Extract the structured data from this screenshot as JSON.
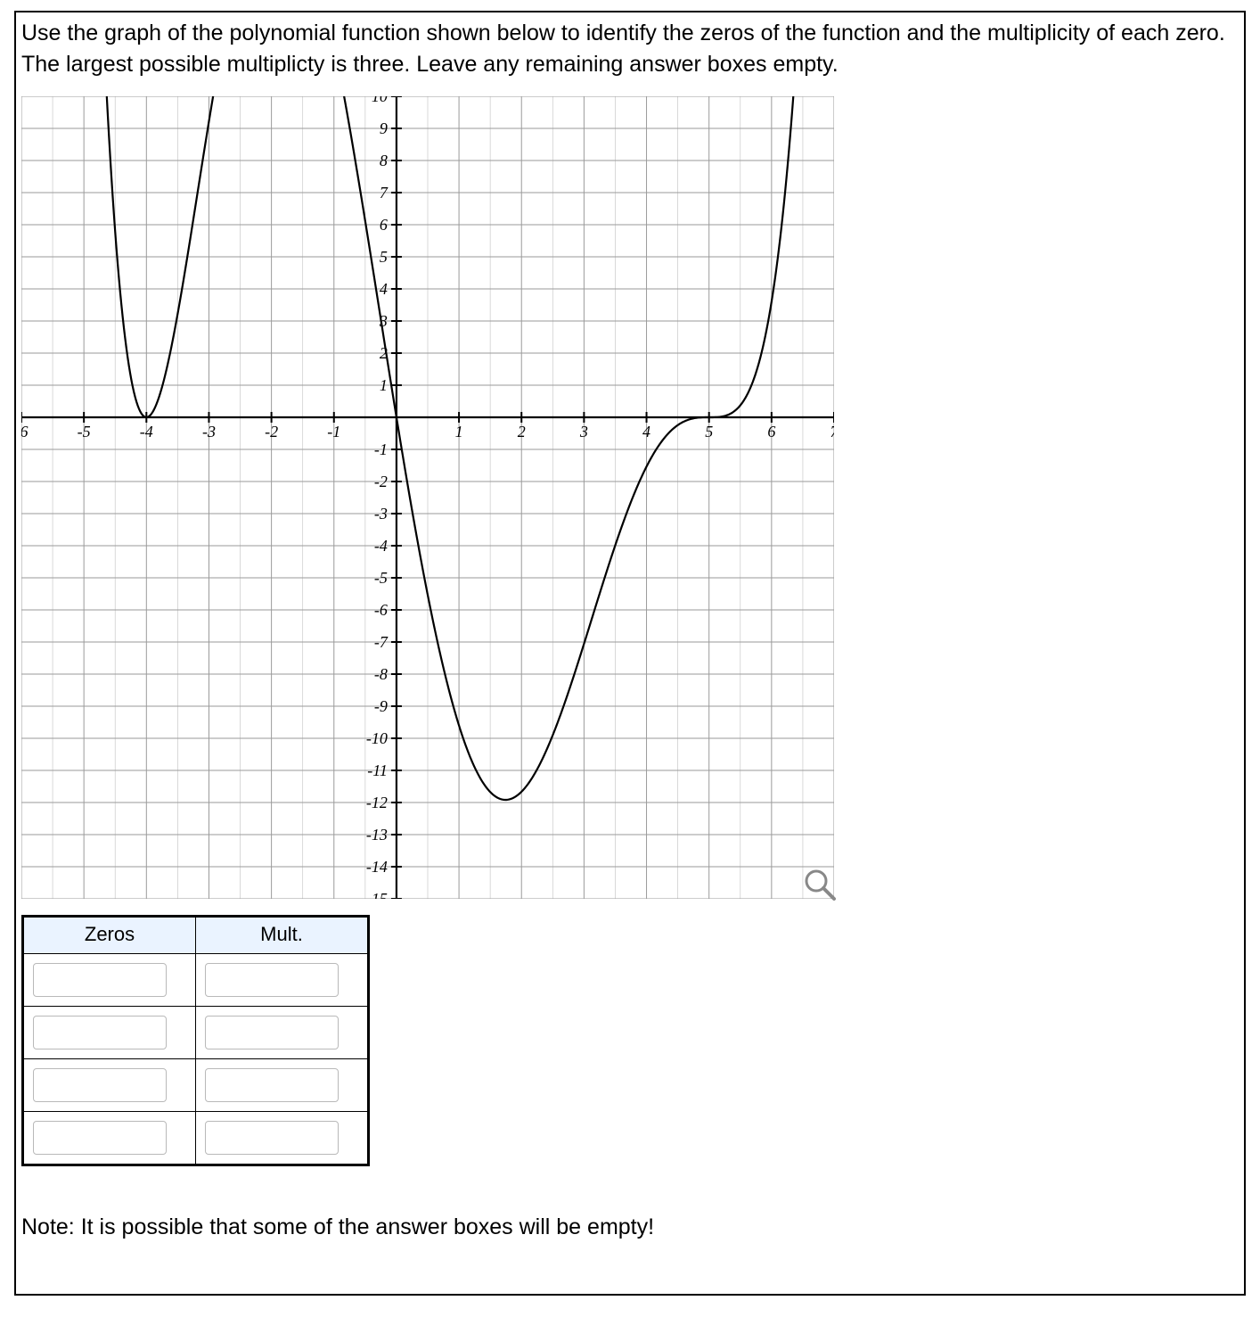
{
  "question_text": "Use the graph of the polynomial function shown below to identify the zeros of the function and the multiplicity of each zero. The largest possible multiplicty is three. Leave any remaining answer boxes empty.",
  "chart": {
    "type": "line",
    "background_color": "#ffffff",
    "grid_color": "#9a9a9a",
    "minor_grid_color": "#c9c9c9",
    "axis_color": "#000000",
    "curve_color": "#000000",
    "tick_label_fontsize": 18,
    "xlim": [
      -6,
      7
    ],
    "ylim": [
      -15,
      10
    ],
    "xtick_step": 1,
    "ytick_step": 1,
    "x_minor_per_major": 2,
    "y_minor_per_major": 1,
    "curve_linewidth": 2.2,
    "formula_note": "approx y = 0.006 * (x+4)^2 * (x-0)^1 * (x-5)^3"
  },
  "table": {
    "headers": [
      "Zeros",
      "Mult."
    ],
    "rows": 4,
    "values": [
      {
        "zero": "",
        "mult": ""
      },
      {
        "zero": "",
        "mult": ""
      },
      {
        "zero": "",
        "mult": ""
      },
      {
        "zero": "",
        "mult": ""
      }
    ],
    "header_bg": "#eaf3ff"
  },
  "note_text": "Note: It is possible that some of the answer boxes will be empty!",
  "magnifier_color": "#888888"
}
